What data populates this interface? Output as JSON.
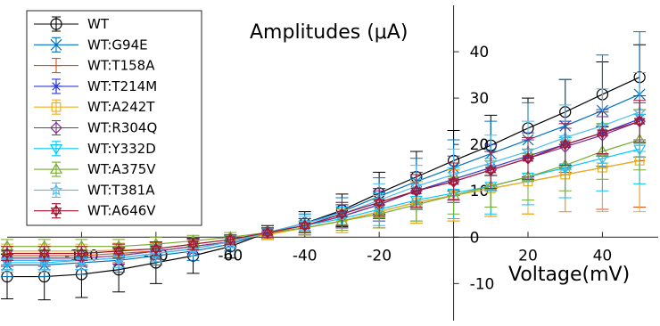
{
  "chart_data": {
    "type": "line",
    "title": "Amplitudes (μA)",
    "xlabel": "Voltage(mV)",
    "ylabel": "",
    "xlim": [
      -120,
      55
    ],
    "ylim": [
      -18,
      50
    ],
    "x_ticks": [
      {
        "value": -100,
        "label": "-100"
      },
      {
        "value": -80,
        "label": "-80"
      },
      {
        "value": -60,
        "label": "-60"
      },
      {
        "value": -40,
        "label": "-40"
      },
      {
        "value": -20,
        "label": "-20"
      },
      {
        "value": 20,
        "label": "20"
      },
      {
        "value": 40,
        "label": "40"
      }
    ],
    "y_ticks": [
      {
        "value": -10,
        "label": "-10"
      },
      {
        "value": 0,
        "label": "0"
      },
      {
        "value": 10,
        "label": "10"
      },
      {
        "value": 20,
        "label": "20"
      },
      {
        "value": 30,
        "label": "30"
      },
      {
        "value": 40,
        "label": "40"
      }
    ],
    "grid": false,
    "legend_position": "top-left",
    "x": [
      -120,
      -110,
      -100,
      -90,
      -80,
      -70,
      -60,
      -50,
      -40,
      -30,
      -20,
      -10,
      0,
      10,
      20,
      30,
      40,
      50
    ],
    "series": [
      {
        "name": "WT",
        "color": "#000000",
        "marker": "circle",
        "values": [
          -8.5,
          -8.5,
          -8.0,
          -7.0,
          -5.5,
          -4.0,
          -2.0,
          1.0,
          3.0,
          5.8,
          9.5,
          13.0,
          16.5,
          19.8,
          23.5,
          27.0,
          30.8,
          34.5
        ],
        "errors": [
          4.8,
          5.0,
          5.0,
          4.8,
          4.5,
          3.8,
          2.5,
          1.5,
          2.5,
          3.5,
          4.5,
          5.5,
          6.5,
          6.5,
          6.5,
          7.0,
          7.0,
          7.0
        ]
      },
      {
        "name": "WT:G94E",
        "color": "#0072bd",
        "marker": "x",
        "values": [
          -6.0,
          -6.0,
          -5.5,
          -5.0,
          -4.0,
          -3.0,
          -1.5,
          1.0,
          3.0,
          5.5,
          8.8,
          12.0,
          15.0,
          18.0,
          21.0,
          24.0,
          27.3,
          30.8
        ],
        "errors": [
          2.5,
          2.5,
          2.5,
          2.5,
          2.0,
          2.0,
          1.5,
          1.0,
          2.0,
          3.0,
          4.0,
          5.0,
          6.0,
          7.0,
          8.0,
          10.0,
          12.0,
          13.5
        ]
      },
      {
        "name": "WT:T158A",
        "color": "#d95319",
        "marker": "bar",
        "values": [
          -4.0,
          -4.0,
          -4.0,
          -3.5,
          -3.0,
          -2.0,
          -1.0,
          0.8,
          2.0,
          3.5,
          5.5,
          7.5,
          9.0,
          10.5,
          12.0,
          13.5,
          15.0,
          16.5
        ],
        "errors": [
          2.0,
          2.0,
          2.0,
          2.0,
          1.8,
          1.5,
          1.2,
          1.0,
          1.5,
          2.5,
          3.5,
          4.5,
          5.5,
          6.0,
          7.0,
          8.0,
          9.0,
          10.0
        ]
      },
      {
        "name": "WT:T214M",
        "color": "#2e3bd1",
        "marker": "asterisk",
        "values": [
          -5.0,
          -5.0,
          -5.0,
          -4.5,
          -3.5,
          -2.5,
          -1.0,
          1.0,
          2.5,
          4.5,
          7.0,
          10.0,
          12.5,
          15.0,
          17.5,
          20.0,
          22.5,
          25.5
        ],
        "errors": [
          2.0,
          2.0,
          2.0,
          2.0,
          1.8,
          1.5,
          1.2,
          1.0,
          1.5,
          2.5,
          3.5,
          4.0,
          5.0,
          5.0,
          5.0,
          5.0,
          5.0,
          5.0
        ]
      },
      {
        "name": "WT:A242T",
        "color": "#edb120",
        "marker": "square",
        "values": [
          -3.0,
          -3.0,
          -3.0,
          -2.8,
          -2.5,
          -1.5,
          -0.5,
          0.5,
          2.0,
          3.5,
          5.5,
          7.5,
          9.0,
          10.5,
          12.0,
          13.5,
          15.0,
          16.5
        ],
        "errors": [
          1.5,
          1.5,
          1.5,
          1.5,
          1.5,
          1.2,
          1.0,
          1.0,
          1.5,
          2.5,
          3.5,
          4.5,
          5.5,
          6.0,
          7.0,
          8.0,
          9.5,
          11.0
        ]
      },
      {
        "name": "WT:R304Q",
        "color": "#7e2f8e",
        "marker": "diamond",
        "values": [
          -4.5,
          -4.5,
          -4.5,
          -4.0,
          -3.0,
          -2.0,
          -1.0,
          1.0,
          2.5,
          4.5,
          7.0,
          10.0,
          12.0,
          14.5,
          17.0,
          19.5,
          22.0,
          25.0
        ],
        "errors": [
          1.8,
          1.8,
          1.8,
          1.8,
          1.5,
          1.5,
          1.2,
          1.0,
          1.5,
          2.5,
          3.0,
          3.5,
          4.0,
          4.0,
          4.0,
          4.0,
          4.0,
          4.0
        ]
      },
      {
        "name": "WT:Y332D",
        "color": "#00c8ff",
        "marker": "triangle-down",
        "values": [
          -5.5,
          -5.5,
          -5.0,
          -4.5,
          -3.5,
          -2.5,
          -1.0,
          1.0,
          2.5,
          4.0,
          6.0,
          8.0,
          9.5,
          11.0,
          13.0,
          15.0,
          17.0,
          19.0
        ],
        "errors": [
          2.0,
          2.0,
          2.0,
          2.0,
          1.8,
          1.5,
          1.2,
          1.0,
          1.5,
          2.5,
          3.5,
          4.5,
          5.5,
          6.0,
          6.0,
          6.5,
          7.0,
          7.5
        ]
      },
      {
        "name": "WT:A375V",
        "color": "#77ac30",
        "marker": "triangle-up",
        "values": [
          -2.0,
          -2.0,
          -2.0,
          -2.0,
          -1.5,
          -0.8,
          0.0,
          1.0,
          2.0,
          3.5,
          5.0,
          7.0,
          9.0,
          11.0,
          13.0,
          15.5,
          18.5,
          21.0
        ],
        "errors": [
          1.5,
          1.5,
          1.5,
          1.5,
          1.5,
          1.2,
          1.0,
          1.0,
          1.5,
          2.0,
          3.0,
          3.5,
          4.0,
          4.5,
          5.0,
          5.5,
          6.0,
          6.5
        ]
      },
      {
        "name": "WT:T381A",
        "color": "#4dbeee",
        "marker": "star",
        "values": [
          -5.0,
          -5.0,
          -5.0,
          -4.5,
          -3.5,
          -2.5,
          -1.0,
          1.0,
          3.0,
          5.0,
          8.0,
          11.0,
          13.5,
          16.0,
          18.5,
          21.5,
          24.0,
          27.0
        ],
        "errors": [
          2.0,
          2.0,
          2.0,
          2.0,
          1.8,
          1.5,
          1.2,
          1.0,
          1.5,
          2.5,
          3.5,
          4.5,
          5.5,
          6.0,
          6.5,
          7.0,
          8.0,
          8.5
        ]
      },
      {
        "name": "WT:A646V",
        "color": "#a2142f",
        "marker": "hexagram",
        "values": [
          -3.5,
          -3.5,
          -3.5,
          -3.0,
          -2.5,
          -1.5,
          -0.5,
          1.0,
          2.5,
          5.0,
          7.5,
          10.0,
          12.0,
          14.5,
          17.0,
          20.0,
          22.5,
          25.0
        ],
        "errors": [
          1.5,
          1.5,
          1.5,
          1.5,
          1.5,
          1.2,
          1.0,
          1.0,
          1.5,
          2.5,
          3.0,
          3.5,
          4.0,
          4.0,
          4.5,
          4.5,
          4.5,
          4.5
        ]
      }
    ]
  }
}
